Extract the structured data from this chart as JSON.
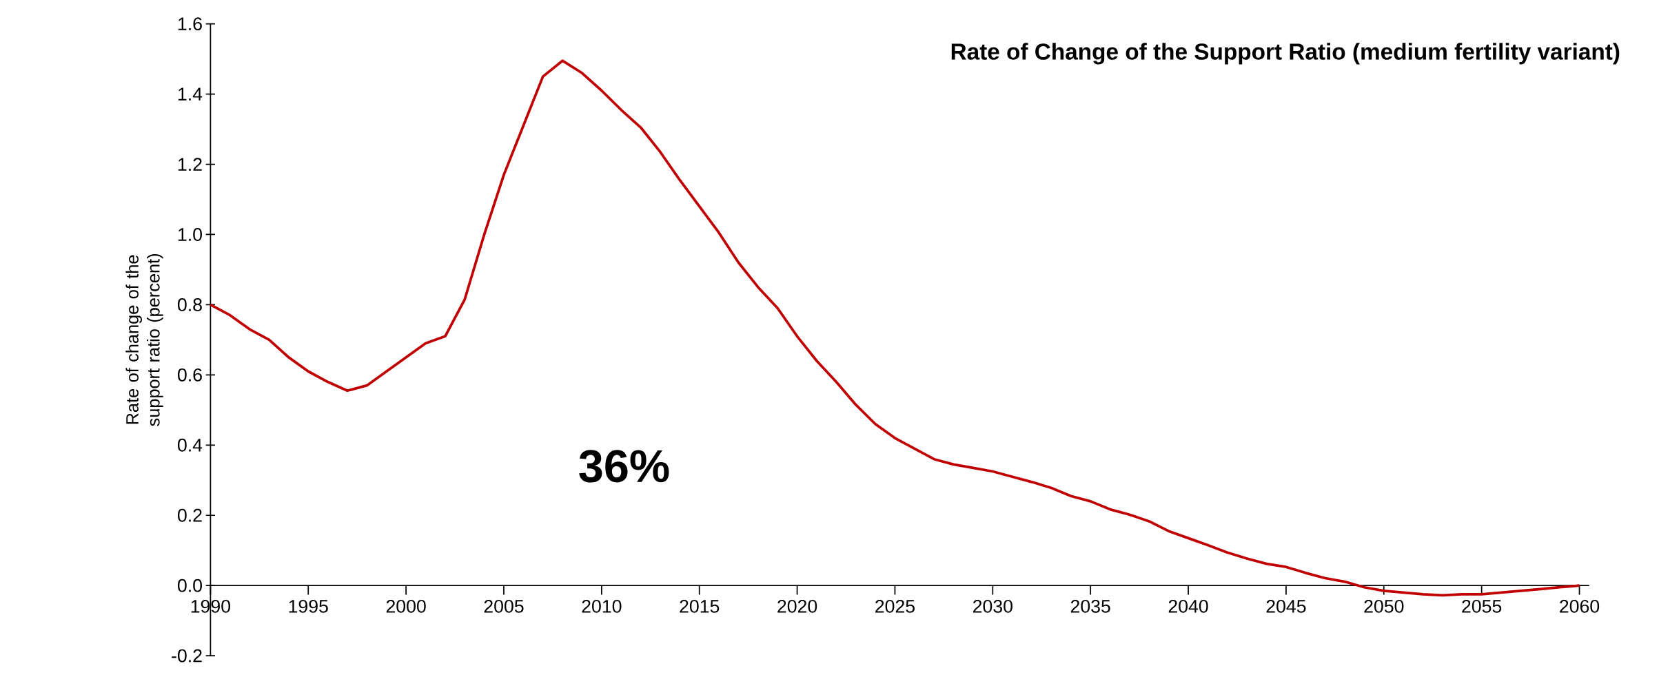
{
  "chart_data": {
    "type": "line",
    "title": "Rate of Change of the Support Ratio (medium fertility variant)",
    "ylabel": "Rate of change of the support ratio (percent)",
    "annotations": [
      "36%"
    ],
    "color": "#c00000",
    "x": [
      1990,
      1991,
      1992,
      1993,
      1994,
      1995,
      1996,
      1997,
      1998,
      1999,
      2000,
      2001,
      2002,
      2003,
      2004,
      2005,
      2006,
      2007,
      2008,
      2009,
      2010,
      2011,
      2012,
      2013,
      2014,
      2015,
      2016,
      2017,
      2018,
      2019,
      2020,
      2021,
      2022,
      2023,
      2024,
      2025,
      2026,
      2027,
      2028,
      2029,
      2030,
      2031,
      2032,
      2033,
      2034,
      2035,
      2036,
      2037,
      2038,
      2039,
      2040,
      2041,
      2042,
      2043,
      2044,
      2045,
      2046,
      2047,
      2048,
      2049,
      2050,
      2051,
      2052,
      2053,
      2054,
      2055,
      2056,
      2057,
      2058,
      2059,
      2060
    ],
    "values": [
      0.8,
      0.77,
      0.73,
      0.7,
      0.65,
      0.61,
      0.58,
      0.555,
      0.57,
      0.61,
      0.65,
      0.69,
      0.71,
      0.815,
      1.0,
      1.17,
      1.31,
      1.45,
      1.495,
      1.46,
      1.41,
      1.355,
      1.305,
      1.235,
      1.155,
      1.08,
      1.005,
      0.92,
      0.85,
      0.79,
      0.71,
      0.64,
      0.58,
      0.515,
      0.46,
      0.42,
      0.39,
      0.36,
      0.345,
      0.335,
      0.325,
      0.31,
      0.295,
      0.278,
      0.255,
      0.24,
      0.217,
      0.202,
      0.183,
      0.155,
      0.135,
      0.115,
      0.094,
      0.077,
      0.062,
      0.053,
      0.036,
      0.021,
      0.011,
      -0.005,
      -0.015,
      -0.02,
      -0.025,
      -0.028,
      -0.025,
      -0.025,
      -0.02,
      -0.015,
      -0.01,
      -0.005,
      0.0
    ],
    "xlim": [
      1990,
      2060.5
    ],
    "xticks": [
      1990,
      1995,
      2000,
      2005,
      2010,
      2015,
      2020,
      2025,
      2030,
      2035,
      2040,
      2045,
      2050,
      2055,
      2060
    ],
    "ylim": [
      -0.2,
      1.6
    ],
    "yticks": [
      {
        "value": -0.2,
        "label": "-0.2"
      },
      {
        "value": 0,
        "label": "0.0"
      },
      {
        "value": 0.2,
        "label": "0.2"
      },
      {
        "value": 0.4,
        "label": "0.4"
      },
      {
        "value": 0.6,
        "label": "0.6"
      },
      {
        "value": 0.8,
        "label": "0.8"
      },
      {
        "value": 1.0,
        "label": "1.0"
      },
      {
        "value": 1.2,
        "label": "1.2"
      },
      {
        "value": 1.4,
        "label": "1.4"
      },
      {
        "value": 1.6,
        "label": "1.6"
      }
    ],
    "grid": false
  }
}
